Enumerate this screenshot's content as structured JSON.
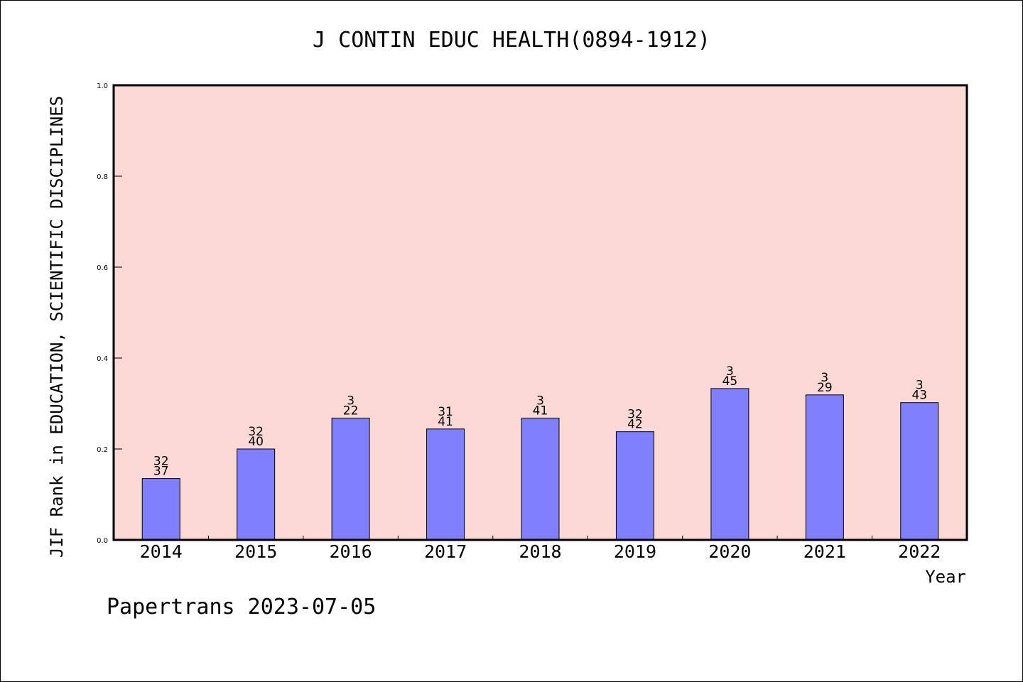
{
  "chart_data": {
    "type": "bar",
    "title": "J CONTIN EDUC HEALTH(0894-1912)",
    "xlabel": "Year",
    "ylabel": "JIF Rank in EDUCATION, SCIENTIFIC DISCIPLINES",
    "ylim": [
      0,
      1.0
    ],
    "yticks": [
      "0.0",
      "0.2",
      "0.4",
      "0.6",
      "0.8",
      "1.0"
    ],
    "categories": [
      "2014",
      "2015",
      "2016",
      "2017",
      "2018",
      "2019",
      "2020",
      "2021",
      "2022"
    ],
    "values": [
      0.135,
      0.2,
      0.268,
      0.244,
      0.268,
      0.238,
      0.333,
      0.319,
      0.302
    ],
    "rank_labels": [
      {
        "rank": "32",
        "total": "37"
      },
      {
        "rank": "32",
        "total": "40"
      },
      {
        "rank": "3",
        "total": "22"
      },
      {
        "rank": "31",
        "total": "41"
      },
      {
        "rank": "3",
        "total": "41"
      },
      {
        "rank": "32",
        "total": "42"
      },
      {
        "rank": "3",
        "total": "45"
      },
      {
        "rank": "3",
        "total": "29"
      },
      {
        "rank": "3",
        "total": "43"
      }
    ],
    "grid": false,
    "colors": {
      "plot_background": "#fdd9d6",
      "bar_fill": "#8080ff",
      "bar_stroke": "#000000"
    }
  },
  "footer": {
    "credit": "Papertrans 2023-07-05"
  }
}
